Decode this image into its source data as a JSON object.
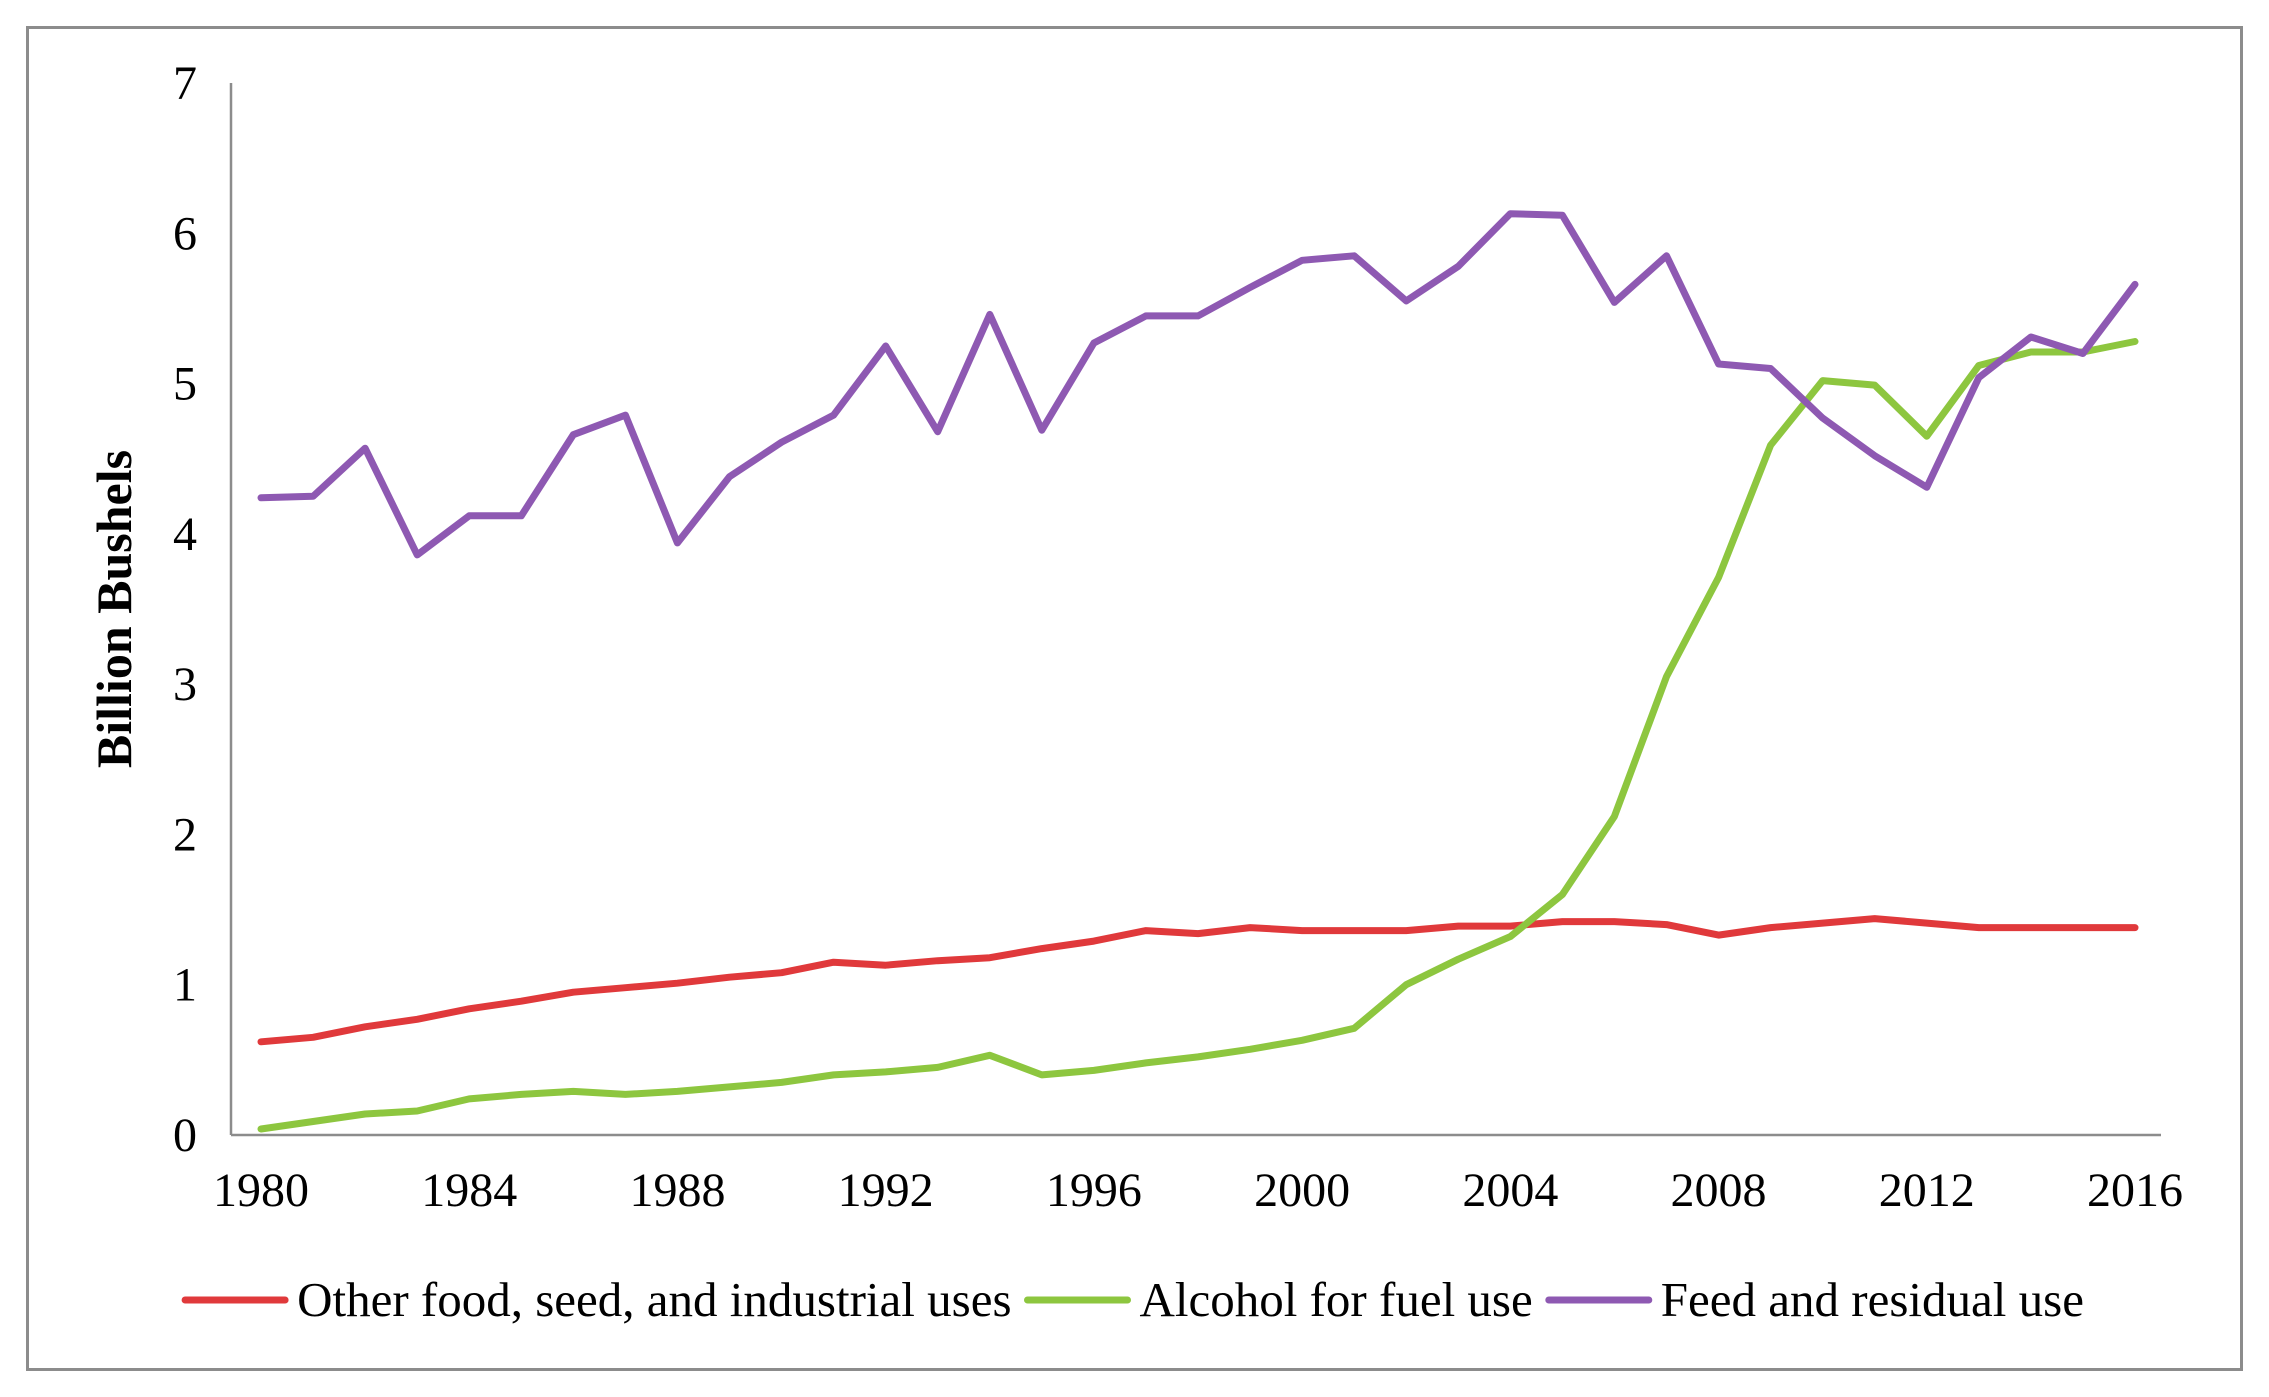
{
  "chart_data": {
    "type": "line",
    "title": "",
    "xlabel": "",
    "ylabel": "Billion Bushels",
    "xlim": [
      1980,
      2016
    ],
    "ylim": [
      0,
      7
    ],
    "yticks": [
      0,
      1,
      2,
      3,
      4,
      5,
      6,
      7
    ],
    "xticks": [
      1980,
      1984,
      1988,
      1992,
      1996,
      2000,
      2004,
      2008,
      2012,
      2016
    ],
    "legend_position": "bottom",
    "grid": false,
    "x": [
      1980,
      1981,
      1982,
      1983,
      1984,
      1985,
      1986,
      1987,
      1988,
      1989,
      1990,
      1991,
      1992,
      1993,
      1994,
      1995,
      1996,
      1997,
      1998,
      1999,
      2000,
      2001,
      2002,
      2003,
      2004,
      2005,
      2006,
      2007,
      2008,
      2009,
      2010,
      2011,
      2012,
      2013,
      2014,
      2015,
      2016
    ],
    "series": [
      {
        "name": "Other food, seed, and industrial uses",
        "color": "#e0393b",
        "values": [
          0.62,
          0.65,
          0.72,
          0.77,
          0.84,
          0.89,
          0.95,
          0.98,
          1.01,
          1.05,
          1.08,
          1.15,
          1.13,
          1.16,
          1.18,
          1.24,
          1.29,
          1.36,
          1.34,
          1.38,
          1.36,
          1.36,
          1.36,
          1.39,
          1.39,
          1.42,
          1.42,
          1.4,
          1.33,
          1.38,
          1.41,
          1.44,
          1.41,
          1.38,
          1.38,
          1.38,
          1.38
        ]
      },
      {
        "name": "Alcohol for fuel use",
        "color": "#8dc63f",
        "values": [
          0.04,
          0.09,
          0.14,
          0.16,
          0.24,
          0.27,
          0.29,
          0.27,
          0.29,
          0.32,
          0.35,
          0.4,
          0.42,
          0.45,
          0.53,
          0.4,
          0.43,
          0.48,
          0.52,
          0.57,
          0.63,
          0.71,
          1.0,
          1.17,
          1.32,
          1.6,
          2.12,
          3.05,
          3.71,
          4.59,
          5.02,
          4.99,
          4.65,
          5.12,
          5.21,
          5.21,
          5.28
        ]
      },
      {
        "name": "Feed and residual use",
        "color": "#8e59b2",
        "values": [
          4.24,
          4.25,
          4.57,
          3.86,
          4.12,
          4.12,
          4.66,
          4.79,
          3.94,
          4.38,
          4.61,
          4.79,
          5.25,
          4.68,
          5.46,
          4.69,
          5.27,
          5.45,
          5.45,
          5.64,
          5.82,
          5.85,
          5.55,
          5.78,
          6.13,
          6.12,
          5.54,
          5.85,
          5.13,
          5.1,
          4.77,
          4.52,
          4.31,
          5.04,
          5.31,
          5.2,
          5.66
        ]
      }
    ]
  }
}
